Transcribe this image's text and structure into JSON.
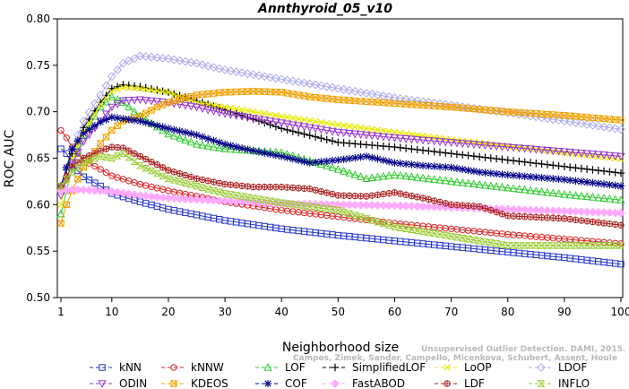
{
  "chart_data": {
    "type": "line",
    "title": "Annthyroid_05_v10",
    "xlabel": "Neighborhood size",
    "ylabel": "ROC AUC",
    "xlim": [
      1,
      100
    ],
    "ylim": [
      0.5,
      0.8
    ],
    "xticks": [
      1,
      10,
      20,
      30,
      40,
      50,
      60,
      70,
      80,
      90,
      100
    ],
    "yticks": [
      "0.50",
      "0.55",
      "0.60",
      "0.65",
      "0.70",
      "0.75",
      "0.80"
    ],
    "legend_position": "bottom",
    "grid": false,
    "watermark": [
      "Campos, Zimek, Sander, Campello, Micenkova, Schubert, Assent, Houle",
      "Unsupervised Outlier Detection. DAMI, 2015."
    ],
    "series": [
      {
        "name": "kNN",
        "color": "#2233cc",
        "marker": "square",
        "points": [
          [
            1,
            0.66
          ],
          [
            2,
            0.655
          ],
          [
            3,
            0.643
          ],
          [
            5,
            0.63
          ],
          [
            8,
            0.62
          ],
          [
            10,
            0.612
          ],
          [
            15,
            0.603
          ],
          [
            20,
            0.595
          ],
          [
            30,
            0.583
          ],
          [
            40,
            0.574
          ],
          [
            50,
            0.567
          ],
          [
            60,
            0.561
          ],
          [
            70,
            0.555
          ],
          [
            80,
            0.549
          ],
          [
            90,
            0.543
          ],
          [
            100,
            0.536
          ]
        ]
      },
      {
        "name": "kNNW",
        "color": "#dd2222",
        "marker": "circle",
        "points": [
          [
            1,
            0.68
          ],
          [
            2,
            0.672
          ],
          [
            3,
            0.662
          ],
          [
            5,
            0.648
          ],
          [
            8,
            0.638
          ],
          [
            10,
            0.631
          ],
          [
            15,
            0.622
          ],
          [
            20,
            0.615
          ],
          [
            30,
            0.603
          ],
          [
            40,
            0.594
          ],
          [
            50,
            0.587
          ],
          [
            60,
            0.58
          ],
          [
            70,
            0.574
          ],
          [
            80,
            0.568
          ],
          [
            90,
            0.563
          ],
          [
            100,
            0.558
          ]
        ]
      },
      {
        "name": "LOF",
        "color": "#33cc33",
        "marker": "triangle-up",
        "points": [
          [
            1,
            0.59
          ],
          [
            3,
            0.64
          ],
          [
            5,
            0.675
          ],
          [
            8,
            0.705
          ],
          [
            10,
            0.716
          ],
          [
            12,
            0.71
          ],
          [
            15,
            0.695
          ],
          [
            20,
            0.676
          ],
          [
            25,
            0.665
          ],
          [
            30,
            0.66
          ],
          [
            40,
            0.656
          ],
          [
            50,
            0.638
          ],
          [
            55,
            0.628
          ],
          [
            60,
            0.632
          ],
          [
            70,
            0.625
          ],
          [
            80,
            0.618
          ],
          [
            90,
            0.611
          ],
          [
            100,
            0.605
          ]
        ]
      },
      {
        "name": "SimplifiedLOF",
        "color": "#000000",
        "marker": "plus",
        "points": [
          [
            1,
            0.62
          ],
          [
            3,
            0.655
          ],
          [
            5,
            0.683
          ],
          [
            8,
            0.71
          ],
          [
            10,
            0.725
          ],
          [
            12,
            0.729
          ],
          [
            15,
            0.727
          ],
          [
            20,
            0.721
          ],
          [
            25,
            0.712
          ],
          [
            30,
            0.702
          ],
          [
            40,
            0.682
          ],
          [
            50,
            0.667
          ],
          [
            60,
            0.662
          ],
          [
            70,
            0.655
          ],
          [
            80,
            0.648
          ],
          [
            90,
            0.641
          ],
          [
            100,
            0.634
          ]
        ]
      },
      {
        "name": "LoOP",
        "color": "#e8e800",
        "marker": "x",
        "points": [
          [
            1,
            0.6
          ],
          [
            3,
            0.65
          ],
          [
            5,
            0.678
          ],
          [
            8,
            0.708
          ],
          [
            10,
            0.722
          ],
          [
            12,
            0.726
          ],
          [
            15,
            0.725
          ],
          [
            20,
            0.721
          ],
          [
            25,
            0.71
          ],
          [
            30,
            0.705
          ],
          [
            40,
            0.695
          ],
          [
            50,
            0.686
          ],
          [
            60,
            0.678
          ],
          [
            70,
            0.67
          ],
          [
            80,
            0.663
          ],
          [
            90,
            0.656
          ],
          [
            100,
            0.649
          ]
        ]
      },
      {
        "name": "LDOF",
        "color": "#aaaaee",
        "marker": "diamond",
        "points": [
          [
            1,
            0.62
          ],
          [
            3,
            0.66
          ],
          [
            5,
            0.69
          ],
          [
            8,
            0.718
          ],
          [
            10,
            0.738
          ],
          [
            12,
            0.752
          ],
          [
            15,
            0.76
          ],
          [
            20,
            0.757
          ],
          [
            25,
            0.752
          ],
          [
            30,
            0.745
          ],
          [
            40,
            0.735
          ],
          [
            50,
            0.725
          ],
          [
            60,
            0.715
          ],
          [
            70,
            0.707
          ],
          [
            80,
            0.699
          ],
          [
            90,
            0.69
          ],
          [
            100,
            0.681
          ]
        ]
      },
      {
        "name": "ODIN",
        "color": "#9933cc",
        "marker": "triangle-down",
        "points": [
          [
            1,
            0.61
          ],
          [
            3,
            0.645
          ],
          [
            5,
            0.668
          ],
          [
            8,
            0.69
          ],
          [
            10,
            0.705
          ],
          [
            12,
            0.712
          ],
          [
            15,
            0.713
          ],
          [
            20,
            0.71
          ],
          [
            25,
            0.705
          ],
          [
            30,
            0.698
          ],
          [
            40,
            0.688
          ],
          [
            50,
            0.678
          ],
          [
            60,
            0.672
          ],
          [
            70,
            0.667
          ],
          [
            80,
            0.662
          ],
          [
            90,
            0.657
          ],
          [
            100,
            0.652
          ]
        ]
      },
      {
        "name": "KDEOS",
        "color": "#f0a000",
        "marker": "square-x",
        "points": [
          [
            1,
            0.58
          ],
          [
            2,
            0.6
          ],
          [
            3,
            0.615
          ],
          [
            5,
            0.64
          ],
          [
            8,
            0.666
          ],
          [
            10,
            0.68
          ],
          [
            12,
            0.69
          ],
          [
            15,
            0.695
          ],
          [
            18,
            0.705
          ],
          [
            20,
            0.71
          ],
          [
            25,
            0.718
          ],
          [
            30,
            0.721
          ],
          [
            35,
            0.722
          ],
          [
            40,
            0.721
          ],
          [
            45,
            0.716
          ],
          [
            50,
            0.713
          ],
          [
            60,
            0.709
          ],
          [
            70,
            0.705
          ],
          [
            80,
            0.7
          ],
          [
            90,
            0.696
          ],
          [
            100,
            0.691
          ]
        ]
      },
      {
        "name": "COF",
        "color": "#000088",
        "marker": "star",
        "points": [
          [
            1,
            0.62
          ],
          [
            3,
            0.66
          ],
          [
            5,
            0.677
          ],
          [
            8,
            0.689
          ],
          [
            10,
            0.694
          ],
          [
            15,
            0.69
          ],
          [
            20,
            0.682
          ],
          [
            25,
            0.675
          ],
          [
            30,
            0.665
          ],
          [
            35,
            0.658
          ],
          [
            40,
            0.652
          ],
          [
            45,
            0.645
          ],
          [
            50,
            0.648
          ],
          [
            55,
            0.652
          ],
          [
            60,
            0.645
          ],
          [
            65,
            0.642
          ],
          [
            70,
            0.64
          ],
          [
            75,
            0.635
          ],
          [
            80,
            0.632
          ],
          [
            90,
            0.627
          ],
          [
            100,
            0.62
          ]
        ]
      },
      {
        "name": "FastABOD",
        "color": "#ffaaff",
        "marker": "diamond-filled",
        "points": [
          [
            1,
            0.615
          ],
          [
            3,
            0.616
          ],
          [
            5,
            0.616
          ],
          [
            10,
            0.614
          ],
          [
            15,
            0.61
          ],
          [
            20,
            0.607
          ],
          [
            30,
            0.604
          ],
          [
            40,
            0.601
          ],
          [
            50,
            0.6
          ],
          [
            60,
            0.599
          ],
          [
            70,
            0.597
          ],
          [
            80,
            0.595
          ],
          [
            90,
            0.593
          ],
          [
            100,
            0.591
          ]
        ]
      },
      {
        "name": "LDF",
        "color": "#aa2222",
        "marker": "circle-plus",
        "points": [
          [
            1,
            0.62
          ],
          [
            3,
            0.641
          ],
          [
            5,
            0.65
          ],
          [
            8,
            0.658
          ],
          [
            10,
            0.662
          ],
          [
            12,
            0.661
          ],
          [
            15,
            0.652
          ],
          [
            20,
            0.637
          ],
          [
            25,
            0.628
          ],
          [
            30,
            0.622
          ],
          [
            35,
            0.619
          ],
          [
            40,
            0.619
          ],
          [
            45,
            0.617
          ],
          [
            50,
            0.61
          ],
          [
            55,
            0.609
          ],
          [
            60,
            0.613
          ],
          [
            65,
            0.607
          ],
          [
            70,
            0.6
          ],
          [
            75,
            0.598
          ],
          [
            80,
            0.588
          ],
          [
            90,
            0.585
          ],
          [
            100,
            0.578
          ]
        ]
      },
      {
        "name": "INFLO",
        "color": "#99cc33",
        "marker": "hourglass",
        "points": [
          [
            1,
            0.62
          ],
          [
            3,
            0.635
          ],
          [
            5,
            0.645
          ],
          [
            8,
            0.652
          ],
          [
            10,
            0.65
          ],
          [
            12,
            0.655
          ],
          [
            15,
            0.642
          ],
          [
            20,
            0.628
          ],
          [
            25,
            0.62
          ],
          [
            30,
            0.612
          ],
          [
            40,
            0.602
          ],
          [
            50,
            0.594
          ],
          [
            55,
            0.585
          ],
          [
            60,
            0.576
          ],
          [
            70,
            0.566
          ],
          [
            80,
            0.556
          ],
          [
            90,
            0.556
          ],
          [
            100,
            0.556
          ]
        ]
      }
    ]
  }
}
